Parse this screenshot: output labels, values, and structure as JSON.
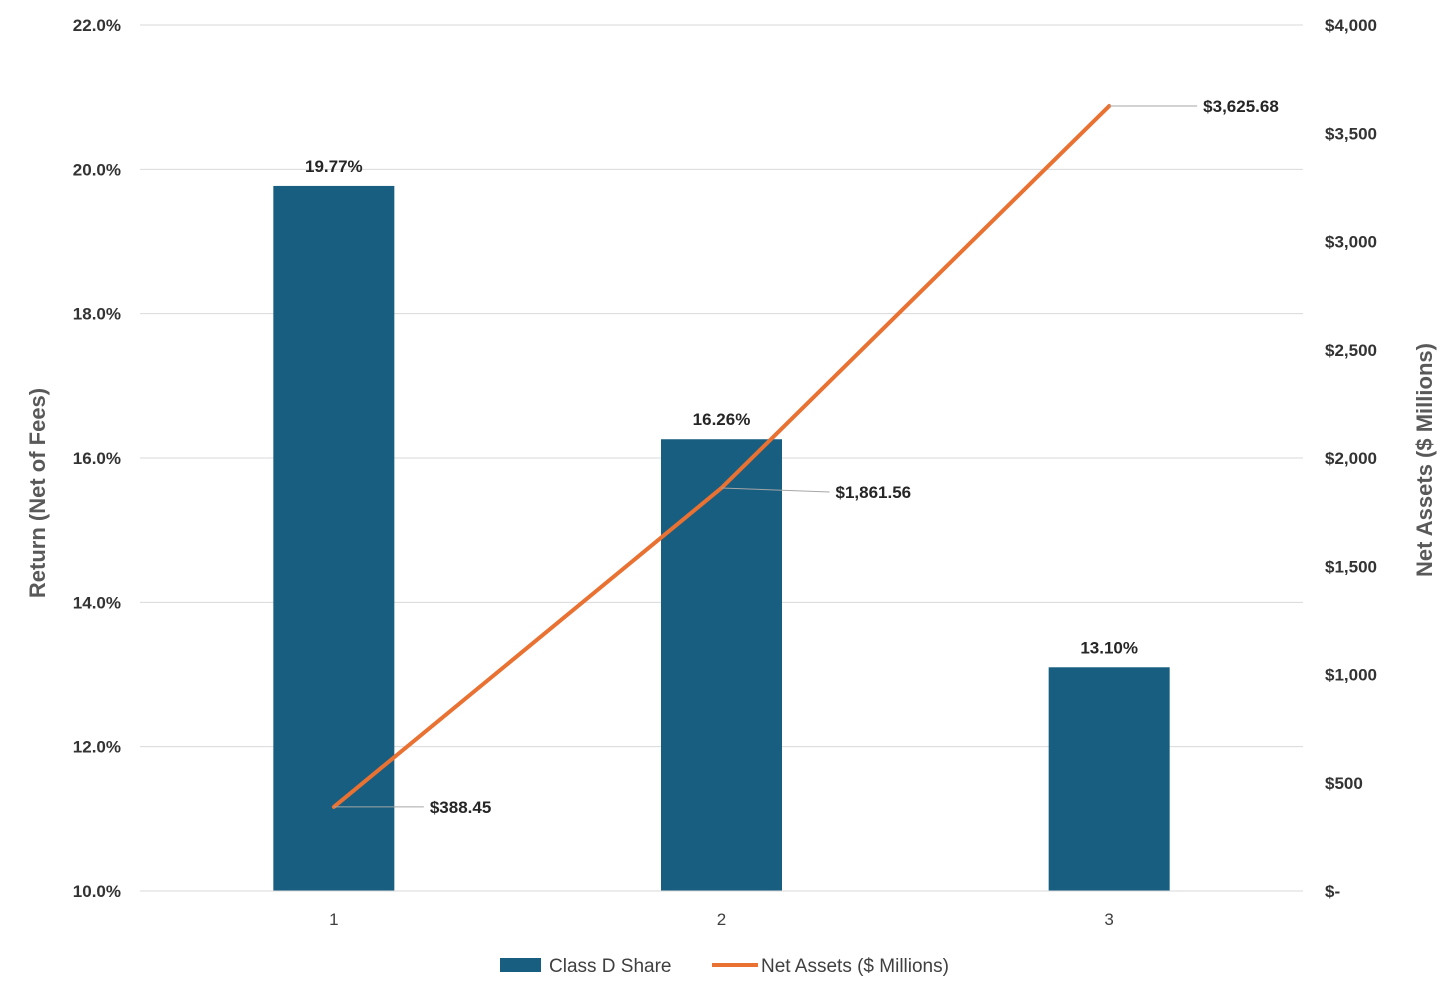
{
  "chart_data": {
    "type": "bar",
    "categories": [
      "1",
      "2",
      "3"
    ],
    "series": [
      {
        "name": "Class D Share",
        "type": "bar",
        "axis": "left",
        "values": [
          19.77,
          16.26,
          13.1
        ],
        "labels": [
          "19.77%",
          "16.26%",
          "13.10%"
        ],
        "color": "#175E81"
      },
      {
        "name": "Net Assets ($ Millions)",
        "type": "line",
        "axis": "right",
        "values": [
          388.45,
          1861.56,
          3625.68
        ],
        "labels": [
          "$388.45",
          "$1,861.56",
          "$3,625.68"
        ],
        "color": "#E97132"
      }
    ],
    "ylabel": "Return (Net of Fees)",
    "y2label": "Net Assets ($ Millions)",
    "ylim": [
      10,
      22
    ],
    "y2lim": [
      0,
      4000
    ],
    "yticks": [
      10,
      12,
      14,
      16,
      18,
      20,
      22
    ],
    "ytick_labels": [
      "10.0%",
      "12.0%",
      "14.0%",
      "16.0%",
      "18.0%",
      "20.0%",
      "22.0%"
    ],
    "y2ticks": [
      0,
      500,
      1000,
      1500,
      2000,
      2500,
      3000,
      3500,
      4000
    ],
    "y2tick_labels": [
      "$-",
      "$500",
      "$1,000",
      "$1,500",
      "$2,000",
      "$2,500",
      "$3,000",
      "$3,500",
      "$4,000"
    ],
    "grid": true,
    "legend": "bottom-center"
  }
}
